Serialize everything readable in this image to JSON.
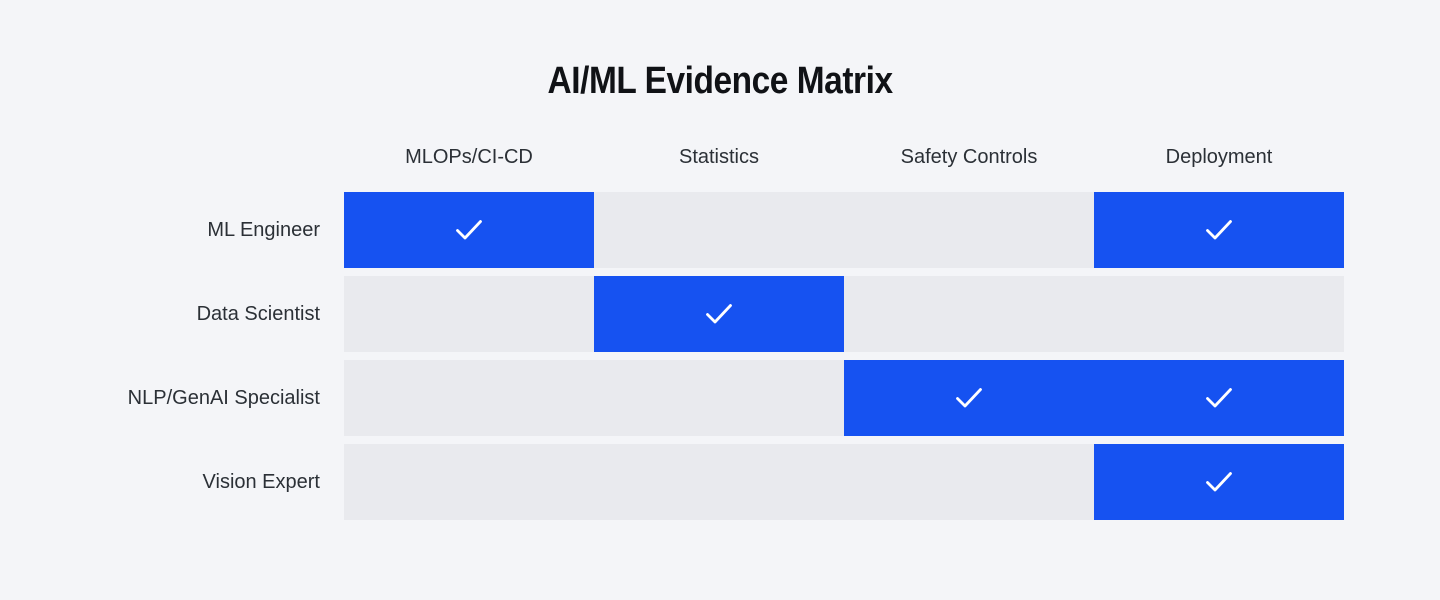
{
  "title": "AI/ML Evidence Matrix",
  "chart_data": {
    "type": "heatmap",
    "title": "AI/ML Evidence Matrix",
    "columns": [
      "MLOPs/CI-CD",
      "Statistics",
      "Safety Controls",
      "Deployment"
    ],
    "rows": [
      "ML Engineer",
      "Data Scientist",
      "NLP/GenAI Specialist",
      "Vision Expert"
    ],
    "values": [
      [
        1,
        0,
        0,
        1
      ],
      [
        0,
        1,
        0,
        0
      ],
      [
        0,
        0,
        1,
        1
      ],
      [
        0,
        0,
        0,
        1
      ]
    ],
    "value_meaning": "1 = white check mark on blue cell, 0 = empty gray cell",
    "legend": "none",
    "grid": "off"
  },
  "colors": {
    "background": "#F4F5F8",
    "cell_checked": "#1652F1",
    "cell_unchecked": "#E9EAEE",
    "check_mark": "#FFFFFF",
    "title_text": "#101216",
    "label_text": "#2B3036"
  },
  "icons": {
    "check": "check-icon"
  }
}
